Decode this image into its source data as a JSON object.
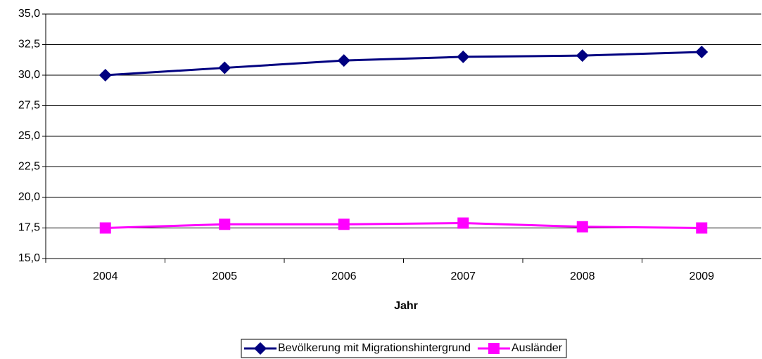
{
  "chart_data": {
    "type": "line",
    "x_label": "Jahr",
    "categories": [
      "2004",
      "2005",
      "2006",
      "2007",
      "2008",
      "2009"
    ],
    "series": [
      {
        "name": "Bevölkerung mit Migrationshintergrund",
        "color": "#000080",
        "marker": "diamond",
        "values": [
          30.0,
          30.6,
          31.2,
          31.5,
          31.6,
          31.9
        ]
      },
      {
        "name": "Ausländer",
        "color": "#ff00ff",
        "marker": "square",
        "values": [
          17.5,
          17.8,
          17.8,
          17.9,
          17.6,
          17.5
        ]
      }
    ],
    "ylim": [
      15,
      35
    ],
    "yticks": [
      {
        "value": 15,
        "label": "15,0"
      },
      {
        "value": 17.5,
        "label": "17,5"
      },
      {
        "value": 20,
        "label": "20,0"
      },
      {
        "value": 22.5,
        "label": "22,5"
      },
      {
        "value": 25,
        "label": "25,0"
      },
      {
        "value": 27.5,
        "label": "27,5"
      },
      {
        "value": 30,
        "label": "30,0"
      },
      {
        "value": 32.5,
        "label": "32,5"
      },
      {
        "value": 35,
        "label": "35,0"
      }
    ],
    "grid": true,
    "legend": "bottom"
  }
}
